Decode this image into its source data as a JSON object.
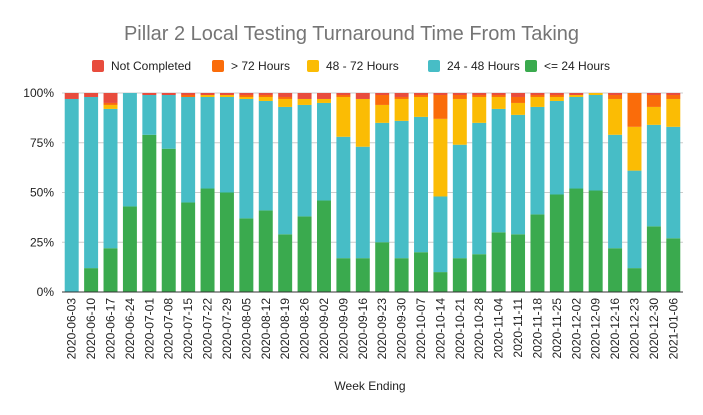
{
  "chart_data": {
    "type": "bar",
    "stacked": true,
    "percent": true,
    "title": "Pillar 2 Local Testing Turnaround Time From Taking",
    "xlabel": "Week Ending",
    "ylabel": "",
    "ylim": [
      0,
      100
    ],
    "yticks": [
      "0%",
      "25%",
      "50%",
      "75%",
      "100%"
    ],
    "grid": true,
    "legend_position": "top",
    "categories": [
      "2020-06-03",
      "2020-06-10",
      "2020-06-17",
      "2020-06-24",
      "2020-07-01",
      "2020-07-08",
      "2020-07-15",
      "2020-07-22",
      "2020-07-29",
      "2020-08-05",
      "2020-08-12",
      "2020-08-19",
      "2020-08-26",
      "2020-09-02",
      "2020-09-09",
      "2020-09-16",
      "2020-09-23",
      "2020-09-30",
      "2020-10-07",
      "2020-10-14",
      "2020-10-21",
      "2020-10-28",
      "2020-11-04",
      "2020-11-11",
      "2020-11-18",
      "2020-11-25",
      "2020-12-02",
      "2020-12-09",
      "2020-12-16",
      "2020-12-23",
      "2020-12-30",
      "2021-01-06"
    ],
    "series": [
      {
        "name": "<= 24 Hours",
        "color": "#3aaa4e",
        "values": [
          0,
          12,
          22,
          43,
          79,
          72,
          45,
          52,
          50,
          37,
          41,
          29,
          38,
          46,
          17,
          17,
          25,
          17,
          20,
          10,
          17,
          19,
          30,
          29,
          39,
          49,
          52,
          51,
          22,
          12,
          33,
          27
        ]
      },
      {
        "name": "24 - 48 Hours",
        "color": "#47bdc6",
        "values": [
          97,
          86,
          70,
          57,
          20,
          27,
          53,
          46,
          48,
          60,
          55,
          64,
          56,
          49,
          61,
          56,
          60,
          69,
          68,
          38,
          57,
          66,
          62,
          60,
          54,
          47,
          46,
          48,
          57,
          49,
          51,
          56
        ]
      },
      {
        "name": "48 - 72 Hours",
        "color": "#fbbc04",
        "values": [
          0,
          0,
          2,
          0,
          0,
          0,
          0,
          1,
          1,
          1,
          2,
          4,
          3,
          2,
          20,
          24,
          9,
          11,
          10,
          39,
          23,
          13,
          6,
          6,
          5,
          2,
          1,
          1,
          18,
          22,
          9,
          14
        ]
      },
      {
        "name": "> 72 Hours",
        "color": "#fa6c0a",
        "values": [
          0,
          0,
          1,
          0,
          0,
          0,
          1,
          0,
          0,
          1,
          1,
          1,
          0,
          0,
          1,
          0,
          5,
          1,
          1,
          12,
          2,
          1,
          1,
          3,
          1,
          1,
          0,
          0,
          2,
          17,
          6,
          2
        ]
      },
      {
        "name": "Not Completed",
        "color": "#e84c3d",
        "values": [
          3,
          2,
          5,
          0,
          1,
          1,
          1,
          1,
          1,
          1,
          1,
          2,
          3,
          3,
          1,
          3,
          1,
          2,
          1,
          1,
          1,
          1,
          1,
          2,
          1,
          1,
          1,
          0,
          1,
          0,
          1,
          1
        ]
      }
    ],
    "legend_order": [
      "Not Completed",
      "> 72 Hours",
      "48 - 72 Hours",
      "24 - 48 Hours",
      "<= 24 Hours"
    ]
  }
}
